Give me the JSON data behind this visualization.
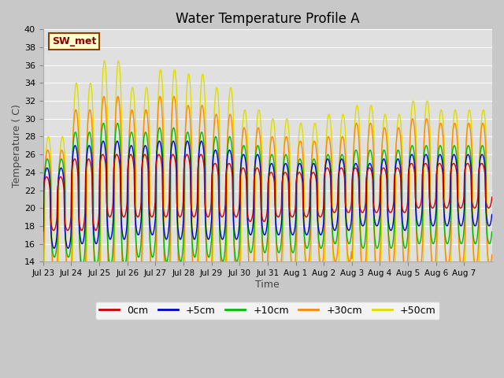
{
  "title": "Water Temperature Profile A",
  "xlabel": "Time",
  "ylabel": "Temperature ( C)",
  "ylim": [
    14,
    40
  ],
  "yticks": [
    14,
    16,
    18,
    20,
    22,
    24,
    26,
    28,
    30,
    32,
    34,
    36,
    38,
    40
  ],
  "fig_bg_color": "#c8c8c8",
  "plot_bg_color": "#e0e0e0",
  "line_colors": {
    "0cm": "#cc0000",
    "+5cm": "#0000cc",
    "+10cm": "#00bb00",
    "+30cm": "#ff8800",
    "+50cm": "#dddd00"
  },
  "annotation_label": "SW_met",
  "annotation_color": "#8b0000",
  "annotation_bg": "#ffffcc",
  "annotation_border": "#8b4000",
  "xtick_labels": [
    "Jul 23",
    "Jul 24",
    "Jul 25",
    "Jul 26",
    "Jul 27",
    "Jul 28",
    "Jul 29",
    "Jul 30",
    "Jul 31",
    "Aug 1",
    "Aug 2",
    "Aug 3",
    "Aug 4",
    "Aug 5",
    "Aug 6",
    "Aug 7"
  ],
  "n_days": 16,
  "ppd": 96,
  "cycles_per_day": 2,
  "base_mean": 21.5,
  "sharpness": 3.0,
  "series": {
    "0cm": {
      "amps": [
        3.0,
        4.0,
        3.5,
        3.5,
        3.5,
        3.5,
        3.0,
        3.0,
        2.5,
        2.5,
        2.5,
        2.5,
        2.5,
        2.5,
        2.5,
        2.5
      ],
      "means": [
        20.5,
        21.5,
        22.5,
        22.5,
        22.5,
        22.5,
        22.0,
        21.5,
        21.5,
        21.5,
        22.0,
        22.0,
        22.0,
        22.5,
        22.5,
        22.5
      ],
      "phase": 0.0
    },
    "+5cm": {
      "amps": [
        4.5,
        5.5,
        5.5,
        5.0,
        5.5,
        5.5,
        5.0,
        4.5,
        4.0,
        4.0,
        4.0,
        3.5,
        4.0,
        4.0,
        4.0,
        4.0
      ],
      "means": [
        20.0,
        21.5,
        22.0,
        22.0,
        22.0,
        22.0,
        21.5,
        21.5,
        21.0,
        21.0,
        21.5,
        21.5,
        21.5,
        22.0,
        22.0,
        22.0
      ],
      "phase": 0.03
    },
    "+10cm": {
      "amps": [
        5.5,
        7.5,
        8.0,
        7.0,
        7.5,
        7.0,
        7.0,
        6.0,
        5.5,
        5.0,
        5.0,
        5.5,
        5.5,
        5.5,
        5.5,
        5.5
      ],
      "means": [
        20.0,
        21.0,
        21.5,
        21.5,
        21.5,
        21.5,
        21.0,
        21.0,
        20.5,
        20.5,
        21.0,
        21.0,
        21.0,
        21.5,
        21.5,
        21.5
      ],
      "phase": 0.05
    },
    "+30cm": {
      "amps": [
        7.0,
        10.0,
        11.0,
        9.5,
        11.0,
        10.0,
        9.5,
        8.5,
        7.5,
        7.0,
        7.0,
        8.5,
        8.0,
        8.5,
        8.0,
        8.0
      ],
      "means": [
        19.5,
        21.0,
        21.5,
        21.5,
        21.5,
        21.5,
        21.0,
        20.5,
        20.5,
        20.5,
        21.0,
        21.0,
        21.0,
        21.5,
        21.5,
        21.5
      ],
      "phase": 0.08
    },
    "+50cm": {
      "amps": [
        9.0,
        13.5,
        15.5,
        12.5,
        14.5,
        14.0,
        13.0,
        11.0,
        10.0,
        9.5,
        10.0,
        11.0,
        10.0,
        11.0,
        10.0,
        10.0
      ],
      "means": [
        19.0,
        20.5,
        21.0,
        21.0,
        21.0,
        21.0,
        20.5,
        20.0,
        20.0,
        20.0,
        20.5,
        20.5,
        20.5,
        21.0,
        21.0,
        21.0
      ],
      "phase": 0.12
    }
  }
}
